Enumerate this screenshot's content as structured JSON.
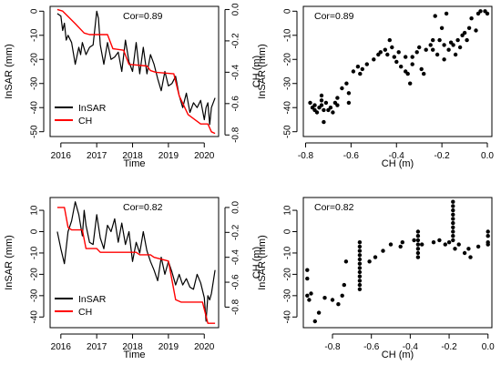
{
  "colors": {
    "insar": "#000000",
    "ch": "#ff0000",
    "points": "#000000"
  },
  "chart_data": [
    {
      "type": "line",
      "annotation": "Cor=0.89",
      "xlabel": "Time",
      "ylabel": "InSAR (mm)",
      "ylabel_right": "CH (m)",
      "xlim": [
        2015.7,
        2020.4
      ],
      "ylim": [
        -52,
        2
      ],
      "ylim_right": [
        -0.81,
        0.02
      ],
      "xticks": [
        2016,
        2017,
        2018,
        2019,
        2020
      ],
      "yticks": [
        0,
        -10,
        -20,
        -30,
        -40,
        -50
      ],
      "yticks_right": [
        0.0,
        -0.2,
        -0.4,
        -0.6,
        -0.8
      ],
      "ytick_labels_right": [
        "0.0",
        "-0.2",
        "-0.4",
        "-0.6",
        "-0.8"
      ],
      "legend": {
        "position": "bottom-left",
        "entries": [
          "InSAR",
          "CH"
        ]
      },
      "series": [
        {
          "name": "InSAR",
          "axis": "left",
          "x": [
            2015.9,
            2016.0,
            2016.05,
            2016.1,
            2016.15,
            2016.2,
            2016.3,
            2016.4,
            2016.5,
            2016.55,
            2016.6,
            2016.7,
            2016.8,
            2016.9,
            2017.0,
            2017.05,
            2017.1,
            2017.2,
            2017.3,
            2017.4,
            2017.5,
            2017.6,
            2017.7,
            2017.8,
            2017.9,
            2018.0,
            2018.1,
            2018.2,
            2018.3,
            2018.4,
            2018.5,
            2018.6,
            2018.7,
            2018.8,
            2018.9,
            2019.0,
            2019.1,
            2019.2,
            2019.3,
            2019.4,
            2019.5,
            2019.6,
            2019.7,
            2019.8,
            2019.9,
            2020.0,
            2020.05,
            2020.1,
            2020.15,
            2020.2,
            2020.3
          ],
          "values": [
            -1,
            -2,
            -8,
            -5,
            -12,
            -10,
            -13,
            -22,
            -15,
            -18,
            -13,
            -18,
            -15,
            -14,
            0,
            -3,
            -14,
            -22,
            -13,
            -20,
            -19,
            -17,
            -25,
            -12,
            -21,
            -25,
            -13,
            -26,
            -15,
            -26,
            -18,
            -22,
            -28,
            -33,
            -25,
            -31,
            -30,
            -27,
            -35,
            -40,
            -34,
            -42,
            -38,
            -40,
            -37,
            -45,
            -40,
            -38,
            -47,
            -40,
            -36
          ]
        },
        {
          "name": "CH",
          "axis": "right",
          "x": [
            2015.9,
            2016.05,
            2016.4,
            2016.65,
            2016.8,
            2017.3,
            2017.45,
            2017.75,
            2017.9,
            2018.4,
            2018.5,
            2018.65,
            2019.15,
            2019.3,
            2019.55,
            2019.9,
            2020.1,
            2020.2,
            2020.3
          ],
          "values": [
            0.0,
            -0.01,
            -0.09,
            -0.15,
            -0.16,
            -0.16,
            -0.25,
            -0.26,
            -0.35,
            -0.36,
            -0.39,
            -0.4,
            -0.41,
            -0.55,
            -0.67,
            -0.73,
            -0.73,
            -0.78,
            -0.79
          ]
        }
      ]
    },
    {
      "type": "scatter",
      "annotation": "Cor=0.89",
      "xlabel": "CH (m)",
      "ylabel": "InSAR (mm)",
      "xlim": [
        -0.81,
        0.02
      ],
      "ylim": [
        -52,
        2
      ],
      "xticks": [
        -0.8,
        -0.6,
        -0.4,
        -0.2,
        0.0
      ],
      "xtick_labels": [
        "-0.8",
        "-0.6",
        "-0.4",
        "-0.2",
        "0.0"
      ],
      "yticks": [
        0,
        -10,
        -20,
        -30,
        -40,
        -50
      ],
      "points": [
        [
          -0.78,
          -38
        ],
        [
          -0.77,
          -40
        ],
        [
          -0.76,
          -39
        ],
        [
          -0.76,
          -41
        ],
        [
          -0.75,
          -42
        ],
        [
          -0.74,
          -40
        ],
        [
          -0.73,
          -35
        ],
        [
          -0.73,
          -37
        ],
        [
          -0.73,
          -39
        ],
        [
          -0.72,
          -41
        ],
        [
          -0.72,
          -46
        ],
        [
          -0.71,
          -38
        ],
        [
          -0.7,
          -41
        ],
        [
          -0.69,
          -40
        ],
        [
          -0.68,
          -42
        ],
        [
          -0.67,
          -38
        ],
        [
          -0.66,
          -39
        ],
        [
          -0.66,
          -36
        ],
        [
          -0.64,
          -32
        ],
        [
          -0.62,
          -30
        ],
        [
          -0.61,
          -34
        ],
        [
          -0.61,
          -38
        ],
        [
          -0.59,
          -25
        ],
        [
          -0.57,
          -23
        ],
        [
          -0.56,
          -26
        ],
        [
          -0.55,
          -24
        ],
        [
          -0.53,
          -22
        ],
        [
          -0.5,
          -20
        ],
        [
          -0.48,
          -18
        ],
        [
          -0.47,
          -17
        ],
        [
          -0.45,
          -16
        ],
        [
          -0.44,
          -18
        ],
        [
          -0.43,
          -12
        ],
        [
          -0.42,
          -15
        ],
        [
          -0.41,
          -19
        ],
        [
          -0.4,
          -21
        ],
        [
          -0.39,
          -17
        ],
        [
          -0.38,
          -23
        ],
        [
          -0.36,
          -19
        ],
        [
          -0.36,
          -25
        ],
        [
          -0.35,
          -26
        ],
        [
          -0.34,
          -30
        ],
        [
          -0.33,
          -22
        ],
        [
          -0.33,
          -19
        ],
        [
          -0.31,
          -17
        ],
        [
          -0.3,
          -15
        ],
        [
          -0.29,
          -24
        ],
        [
          -0.28,
          -26
        ],
        [
          -0.27,
          -16
        ],
        [
          -0.25,
          -14
        ],
        [
          -0.24,
          -16
        ],
        [
          -0.24,
          -12
        ],
        [
          -0.23,
          -2
        ],
        [
          -0.22,
          -18
        ],
        [
          -0.21,
          -12
        ],
        [
          -0.2,
          -7
        ],
        [
          -0.19,
          -14
        ],
        [
          -0.19,
          -20
        ],
        [
          -0.18,
          -1
        ],
        [
          -0.17,
          -16
        ],
        [
          -0.16,
          -13
        ],
        [
          -0.15,
          -14
        ],
        [
          -0.14,
          -18
        ],
        [
          -0.13,
          -12
        ],
        [
          -0.12,
          -15
        ],
        [
          -0.11,
          -10
        ],
        [
          -0.1,
          -9
        ],
        [
          -0.09,
          -12
        ],
        [
          -0.08,
          -7
        ],
        [
          -0.07,
          -3
        ],
        [
          -0.05,
          -8
        ],
        [
          -0.04,
          -1
        ],
        [
          -0.03,
          0
        ],
        [
          -0.01,
          0
        ],
        [
          0.0,
          -1
        ]
      ]
    },
    {
      "type": "line",
      "annotation": "Cor=0.82",
      "xlabel": "Time",
      "ylabel": "InSAR (mm)",
      "ylabel_right": "CH (m)",
      "xlim": [
        2015.7,
        2020.4
      ],
      "ylim": [
        -45,
        16
      ],
      "ylim_right": [
        -0.965,
        0.08
      ],
      "xticks": [
        2016,
        2017,
        2018,
        2019,
        2020
      ],
      "yticks": [
        10,
        0,
        -10,
        -20,
        -30,
        -40
      ],
      "yticks_right": [
        0.0,
        -0.2,
        -0.4,
        -0.6,
        -0.8
      ],
      "ytick_labels_right": [
        "0.0",
        "-0.2",
        "-0.4",
        "-0.6",
        "-0.8"
      ],
      "legend": {
        "position": "bottom-left",
        "entries": [
          "InSAR",
          "CH"
        ]
      },
      "series": [
        {
          "name": "InSAR",
          "axis": "left",
          "x": [
            2015.9,
            2016.0,
            2016.1,
            2016.2,
            2016.3,
            2016.4,
            2016.5,
            2016.6,
            2016.65,
            2016.7,
            2016.8,
            2016.9,
            2017.0,
            2017.1,
            2017.2,
            2017.3,
            2017.4,
            2017.5,
            2017.6,
            2017.7,
            2017.8,
            2017.9,
            2018.0,
            2018.1,
            2018.2,
            2018.3,
            2018.4,
            2018.5,
            2018.6,
            2018.7,
            2018.8,
            2018.9,
            2019.0,
            2019.1,
            2019.2,
            2019.3,
            2019.4,
            2019.5,
            2019.6,
            2019.7,
            2019.8,
            2019.9,
            2020.0,
            2020.05,
            2020.1,
            2020.15,
            2020.2,
            2020.3
          ],
          "values": [
            0,
            -8,
            -15,
            0,
            5,
            14,
            8,
            -2,
            10,
            3,
            -5,
            -6,
            8,
            -3,
            -8,
            3,
            0,
            6,
            -5,
            4,
            -6,
            0,
            -14,
            -5,
            -10,
            0,
            -9,
            -14,
            -18,
            -23,
            -12,
            -20,
            -14,
            -19,
            -25,
            -20,
            -25,
            -22,
            -26,
            -27,
            -20,
            -24,
            -31,
            -42,
            -30,
            -32,
            -29,
            -18
          ]
        },
        {
          "name": "CH",
          "axis": "right",
          "x": [
            2015.9,
            2016.1,
            2016.2,
            2016.3,
            2016.6,
            2016.7,
            2017.0,
            2017.1,
            2018.1,
            2018.2,
            2018.5,
            2018.6,
            2019.0,
            2019.2,
            2019.35,
            2019.95,
            2020.1,
            2020.3
          ],
          "values": [
            0.0,
            0.0,
            -0.16,
            -0.18,
            -0.18,
            -0.33,
            -0.33,
            -0.36,
            -0.36,
            -0.38,
            -0.38,
            -0.4,
            -0.43,
            -0.74,
            -0.76,
            -0.76,
            -0.93,
            -0.93
          ]
        }
      ]
    },
    {
      "type": "scatter",
      "annotation": "Cor=0.82",
      "xlabel": "CH (m)",
      "ylabel": "InSAR (mm)",
      "xlim": [
        -0.95,
        0.02
      ],
      "ylim": [
        -45,
        16
      ],
      "xticks": [
        -0.8,
        -0.6,
        -0.4,
        -0.2,
        0.0
      ],
      "xtick_labels": [
        "-0.8",
        "-0.6",
        "-0.4",
        "-0.2",
        "0.0"
      ],
      "yticks": [
        10,
        0,
        -10,
        -20,
        -30,
        -40
      ],
      "points": [
        [
          -0.93,
          -18
        ],
        [
          -0.93,
          -22
        ],
        [
          -0.93,
          -30
        ],
        [
          -0.92,
          -32
        ],
        [
          -0.91,
          -29
        ],
        [
          -0.89,
          -42
        ],
        [
          -0.87,
          -38
        ],
        [
          -0.84,
          -31
        ],
        [
          -0.8,
          -32
        ],
        [
          -0.77,
          -34
        ],
        [
          -0.75,
          -30
        ],
        [
          -0.73,
          -14
        ],
        [
          -0.74,
          -25
        ],
        [
          -0.66,
          -5
        ],
        [
          -0.66,
          -7
        ],
        [
          -0.66,
          -9
        ],
        [
          -0.66,
          -11
        ],
        [
          -0.66,
          -13
        ],
        [
          -0.66,
          -15
        ],
        [
          -0.66,
          -17
        ],
        [
          -0.66,
          -19
        ],
        [
          -0.66,
          -21
        ],
        [
          -0.66,
          -23
        ],
        [
          -0.66,
          -25
        ],
        [
          -0.66,
          -27
        ],
        [
          -0.61,
          -14
        ],
        [
          -0.58,
          -12
        ],
        [
          -0.54,
          -9
        ],
        [
          -0.5,
          -6
        ],
        [
          -0.45,
          -7
        ],
        [
          -0.44,
          -5
        ],
        [
          -0.38,
          -4
        ],
        [
          -0.36,
          0
        ],
        [
          -0.36,
          -2
        ],
        [
          -0.36,
          -4
        ],
        [
          -0.36,
          -6
        ],
        [
          -0.36,
          -8
        ],
        [
          -0.36,
          -10
        ],
        [
          -0.36,
          -12
        ],
        [
          -0.34,
          -6
        ],
        [
          -0.28,
          -5
        ],
        [
          -0.25,
          -4
        ],
        [
          -0.22,
          -6
        ],
        [
          -0.2,
          -5
        ],
        [
          -0.18,
          14
        ],
        [
          -0.18,
          12
        ],
        [
          -0.18,
          10
        ],
        [
          -0.18,
          8
        ],
        [
          -0.18,
          6
        ],
        [
          -0.18,
          4
        ],
        [
          -0.18,
          2
        ],
        [
          -0.18,
          0
        ],
        [
          -0.18,
          -2
        ],
        [
          -0.18,
          -4
        ],
        [
          -0.17,
          -8
        ],
        [
          -0.15,
          -6
        ],
        [
          -0.12,
          -10
        ],
        [
          -0.1,
          -8
        ],
        [
          -0.09,
          -12
        ],
        [
          -0.05,
          -7
        ],
        [
          0.0,
          0
        ],
        [
          0.0,
          -2
        ],
        [
          0.0,
          -5
        ],
        [
          0.0,
          -6
        ]
      ]
    }
  ]
}
